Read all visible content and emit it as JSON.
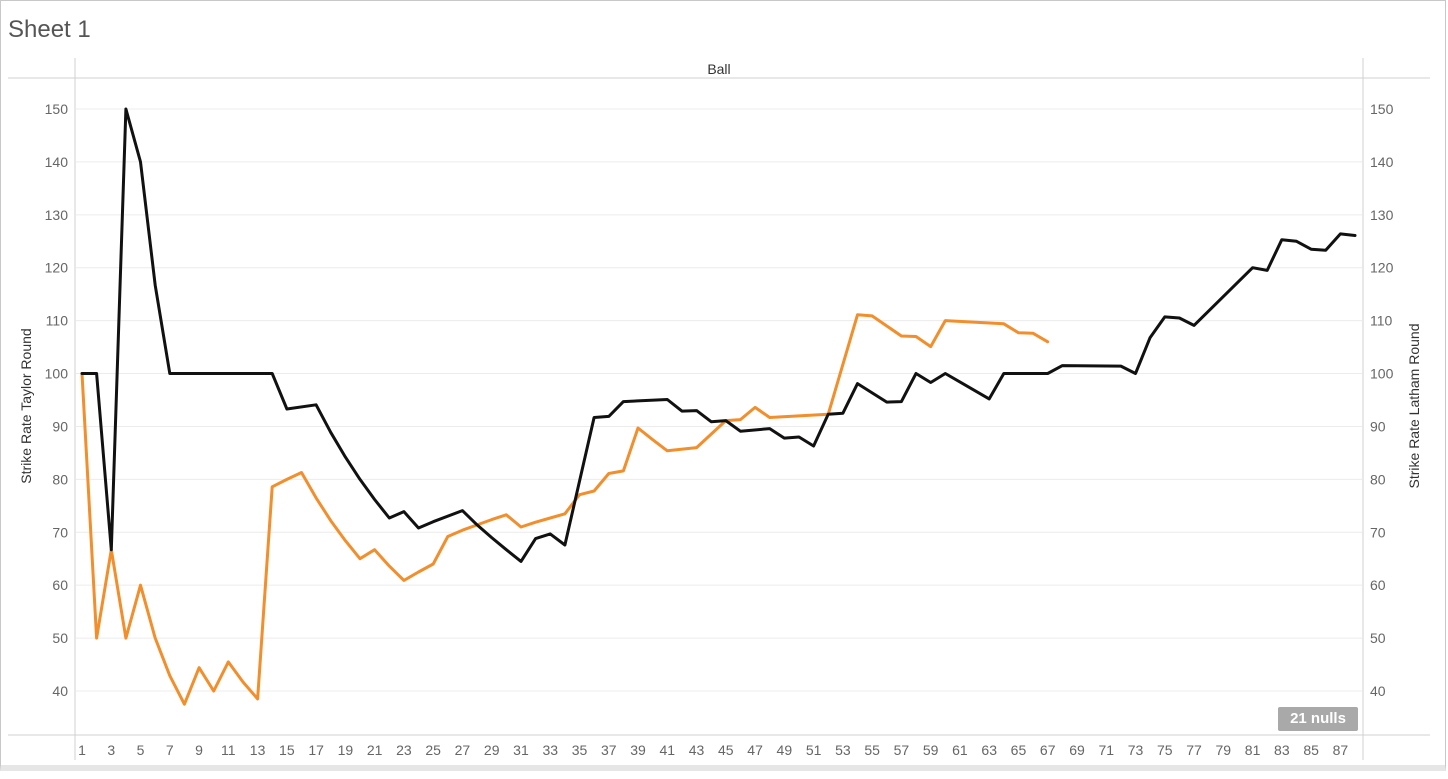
{
  "sheet": {
    "title": "Sheet 1"
  },
  "nulls_badge": "21 nulls",
  "chart_data": {
    "type": "line",
    "title": "Sheet 1",
    "column_header": "Ball",
    "xlabel": "",
    "ylabel_left": "Strike Rate Taylor Round",
    "ylabel_right": "Strike Rate Latham Round",
    "xlim": [
      1,
      88
    ],
    "ylim": [
      33,
      155
    ],
    "yticks": [
      40,
      50,
      60,
      70,
      80,
      90,
      100,
      110,
      120,
      130,
      140,
      150
    ],
    "xticks": [
      1,
      3,
      5,
      7,
      9,
      11,
      13,
      15,
      17,
      19,
      21,
      23,
      25,
      27,
      29,
      31,
      33,
      35,
      37,
      39,
      41,
      43,
      45,
      47,
      49,
      51,
      53,
      55,
      57,
      59,
      61,
      63,
      65,
      67,
      69,
      71,
      73,
      75,
      77,
      79,
      81,
      83,
      85,
      87
    ],
    "grid": "horizontal",
    "series": [
      {
        "name": "Strike Rate Taylor Round",
        "axis": "left",
        "color": "#f28e2b",
        "points": [
          [
            1,
            100
          ],
          [
            2,
            50
          ],
          [
            3,
            66.7
          ],
          [
            4,
            50
          ],
          [
            5,
            60
          ],
          [
            6,
            50
          ],
          [
            7,
            42.9
          ],
          [
            8,
            37.5
          ],
          [
            9,
            44.4
          ],
          [
            10,
            40
          ],
          [
            11,
            45.5
          ],
          [
            12,
            41.7
          ],
          [
            13,
            38.5
          ],
          [
            14,
            78.6
          ],
          [
            15,
            80
          ],
          [
            16,
            81.3
          ],
          [
            17,
            76.5
          ],
          [
            18,
            72.2
          ],
          [
            19,
            68.4
          ],
          [
            20,
            65
          ],
          [
            21,
            66.7
          ],
          [
            22,
            63.6
          ],
          [
            23,
            60.9
          ],
          [
            24,
            62.5
          ],
          [
            25,
            64
          ],
          [
            26,
            69.2
          ],
          [
            27,
            70.4
          ],
          [
            28,
            71.4
          ],
          [
            29,
            72.4
          ],
          [
            30,
            73.3
          ],
          [
            31,
            71
          ],
          [
            32,
            71.9
          ],
          [
            33,
            72.7
          ],
          [
            34,
            73.5
          ],
          [
            35,
            77.1
          ],
          [
            36,
            77.8
          ],
          [
            37,
            81.1
          ],
          [
            38,
            81.6
          ],
          [
            39,
            89.7
          ],
          [
            40,
            87.5
          ],
          [
            41,
            85.4
          ],
          [
            43,
            86
          ],
          [
            45,
            91.1
          ],
          [
            46,
            91.3
          ],
          [
            47,
            93.6
          ],
          [
            48,
            91.7
          ],
          [
            52,
            92.3
          ],
          [
            54,
            111.1
          ],
          [
            55,
            110.9
          ],
          [
            57,
            107.1
          ],
          [
            58,
            107
          ],
          [
            59,
            105.1
          ],
          [
            60,
            110
          ],
          [
            64,
            109.4
          ],
          [
            65,
            107.7
          ],
          [
            66,
            107.6
          ],
          [
            67,
            106
          ]
        ]
      },
      {
        "name": "Strike Rate Latham Round",
        "axis": "right",
        "color": "#111111",
        "points": [
          [
            1,
            100
          ],
          [
            2,
            100
          ],
          [
            3,
            66.7
          ],
          [
            4,
            150
          ],
          [
            5,
            140
          ],
          [
            6,
            116.7
          ],
          [
            7,
            100
          ],
          [
            8,
            100
          ],
          [
            9,
            100
          ],
          [
            10,
            100
          ],
          [
            11,
            100
          ],
          [
            12,
            100
          ],
          [
            13,
            100
          ],
          [
            14,
            100
          ],
          [
            15,
            93.3
          ],
          [
            17,
            94.1
          ],
          [
            18,
            88.9
          ],
          [
            19,
            84.2
          ],
          [
            20,
            80
          ],
          [
            21,
            76.2
          ],
          [
            22,
            72.7
          ],
          [
            23,
            73.9
          ],
          [
            24,
            70.8
          ],
          [
            25,
            72
          ],
          [
            27,
            74.1
          ],
          [
            28,
            71.4
          ],
          [
            29,
            69
          ],
          [
            30,
            66.7
          ],
          [
            31,
            64.5
          ],
          [
            32,
            68.8
          ],
          [
            33,
            69.7
          ],
          [
            34,
            67.6
          ],
          [
            36,
            91.7
          ],
          [
            37,
            91.9
          ],
          [
            38,
            94.7
          ],
          [
            41,
            95.1
          ],
          [
            42,
            92.9
          ],
          [
            43,
            93
          ],
          [
            44,
            90.9
          ],
          [
            45,
            91.1
          ],
          [
            46,
            89.1
          ],
          [
            48,
            89.6
          ],
          [
            49,
            87.8
          ],
          [
            50,
            88
          ],
          [
            51,
            86.3
          ],
          [
            52,
            92.3
          ],
          [
            53,
            92.5
          ],
          [
            54,
            98.1
          ],
          [
            56,
            94.6
          ],
          [
            57,
            94.7
          ],
          [
            58,
            100
          ],
          [
            59,
            98.3
          ],
          [
            60,
            100
          ],
          [
            63,
            95.2
          ],
          [
            64,
            100
          ],
          [
            67,
            100
          ],
          [
            68,
            101.5
          ],
          [
            72,
            101.4
          ],
          [
            73,
            100
          ],
          [
            74,
            106.8
          ],
          [
            75,
            110.7
          ],
          [
            76,
            110.5
          ],
          [
            77,
            109.1
          ],
          [
            81,
            120
          ],
          [
            82,
            119.5
          ],
          [
            83,
            125.3
          ],
          [
            84,
            125
          ],
          [
            85,
            123.5
          ],
          [
            86,
            123.3
          ],
          [
            87,
            126.4
          ],
          [
            88,
            126.1
          ]
        ]
      }
    ]
  }
}
